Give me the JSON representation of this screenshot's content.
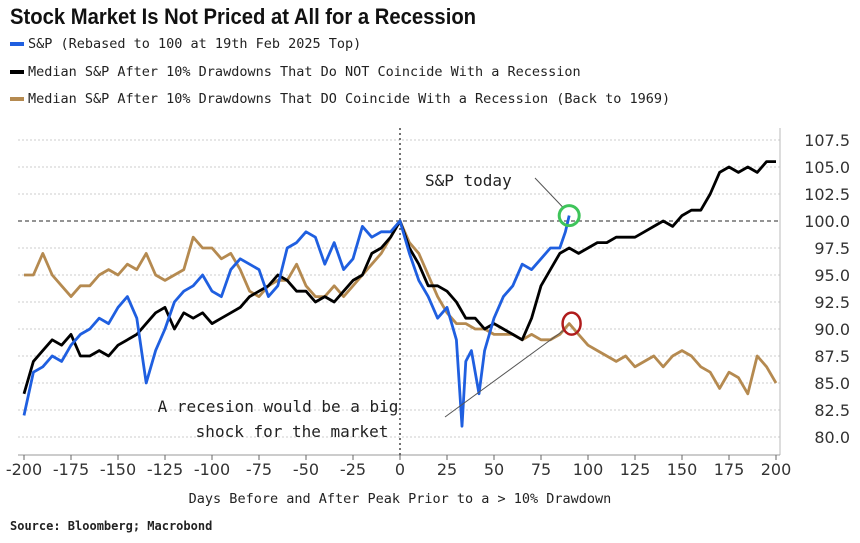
{
  "chart_data": {
    "type": "line",
    "title": "Stock Market Is Not Priced at All for a Recession",
    "xlabel": "Days Before and After Peak Prior to a > 10% Drawdown",
    "ylabel": "",
    "xlim": [
      -200,
      200
    ],
    "ylim": [
      79,
      108.5
    ],
    "y_axis_side": "right",
    "grid": true,
    "legend_placement": "top-left",
    "x_ticks": [
      -200,
      -175,
      -150,
      -125,
      -100,
      -75,
      -50,
      -25,
      0,
      25,
      50,
      75,
      100,
      125,
      150,
      175,
      200
    ],
    "y_ticks": [
      "80.0",
      "82.5",
      "85.0",
      "87.5",
      "90.0",
      "92.5",
      "95.0",
      "97.5",
      "100.0",
      "102.5",
      "105.0",
      "107.5"
    ],
    "reference_lines": {
      "horizontal_y": 100,
      "vertical_x": 0
    },
    "series": [
      {
        "name": "S&P (Rebased to 100 at 19th Feb 2025 Top)",
        "color": "#1f5fe0",
        "x": [
          -200,
          -195,
          -190,
          -185,
          -180,
          -175,
          -170,
          -165,
          -160,
          -155,
          -150,
          -145,
          -140,
          -135,
          -130,
          -125,
          -120,
          -115,
          -110,
          -105,
          -100,
          -95,
          -90,
          -85,
          -80,
          -75,
          -70,
          -65,
          -60,
          -55,
          -50,
          -45,
          -40,
          -35,
          -30,
          -25,
          -20,
          -15,
          -10,
          -5,
          0,
          5,
          10,
          15,
          20,
          25,
          30,
          33,
          35,
          38,
          42,
          45,
          50,
          55,
          60,
          65,
          70,
          75,
          80,
          85,
          88,
          90
        ],
        "y": [
          82,
          86,
          86.5,
          87.5,
          87,
          88.5,
          89.5,
          90,
          91,
          90.5,
          92,
          93,
          91,
          85,
          88,
          90,
          92.5,
          93.5,
          94,
          95,
          93.5,
          93,
          95.5,
          96.5,
          96,
          95.5,
          93,
          94,
          97.5,
          98,
          99,
          98.5,
          96,
          98,
          95.5,
          96.5,
          99.5,
          98.5,
          99,
          99,
          100,
          97,
          94.5,
          93,
          91,
          92,
          89,
          81,
          87,
          88,
          84,
          88,
          91,
          93,
          94,
          96,
          95.5,
          96.5,
          97.5,
          97.5,
          99,
          100.5
        ]
      },
      {
        "name": "Median S&P After 10% Drawdowns That Do NOT Coincide With a Recession",
        "color": "#000000",
        "x": [
          -200,
          -195,
          -190,
          -185,
          -180,
          -175,
          -170,
          -165,
          -160,
          -155,
          -150,
          -145,
          -140,
          -135,
          -130,
          -125,
          -120,
          -115,
          -110,
          -105,
          -100,
          -95,
          -90,
          -85,
          -80,
          -75,
          -70,
          -65,
          -60,
          -55,
          -50,
          -45,
          -40,
          -35,
          -30,
          -25,
          -20,
          -15,
          -10,
          -5,
          0,
          5,
          10,
          15,
          20,
          25,
          30,
          35,
          40,
          45,
          50,
          55,
          60,
          65,
          70,
          75,
          80,
          85,
          90,
          95,
          100,
          105,
          110,
          115,
          120,
          125,
          130,
          135,
          140,
          145,
          150,
          155,
          160,
          165,
          170,
          175,
          180,
          185,
          190,
          195,
          200
        ],
        "y": [
          84,
          87,
          88,
          89,
          88.5,
          89.5,
          87.5,
          87.5,
          88,
          87.5,
          88.5,
          89,
          89.5,
          90.5,
          91.5,
          92,
          90,
          91.5,
          91,
          91.5,
          90.5,
          91,
          91.5,
          92,
          93,
          93.5,
          94,
          95,
          94.5,
          93.5,
          93.5,
          92.5,
          93,
          92.5,
          93.5,
          94.5,
          95,
          97,
          97.5,
          98.5,
          100,
          97.5,
          96,
          94,
          94,
          93.5,
          92.5,
          91,
          91,
          90,
          90.5,
          90,
          89.5,
          89,
          91,
          94,
          95.5,
          97,
          97.5,
          97,
          97.5,
          98,
          98,
          98.5,
          98.5,
          98.5,
          99,
          99.5,
          100,
          99.5,
          100.5,
          101,
          101,
          102.5,
          104.5,
          105,
          104.5,
          105,
          104.5,
          105.5,
          105.5
        ]
      },
      {
        "name": "Median S&P After 10% Drawdowns That DO Coincide With a Recession (Back to 1969)",
        "color": "#b58a50",
        "x": [
          -200,
          -195,
          -190,
          -185,
          -180,
          -175,
          -170,
          -165,
          -160,
          -155,
          -150,
          -145,
          -140,
          -135,
          -130,
          -125,
          -120,
          -115,
          -110,
          -105,
          -100,
          -95,
          -90,
          -85,
          -80,
          -75,
          -70,
          -65,
          -60,
          -55,
          -50,
          -45,
          -40,
          -35,
          -30,
          -25,
          -20,
          -15,
          -10,
          -5,
          0,
          5,
          10,
          15,
          20,
          25,
          30,
          35,
          40,
          45,
          50,
          55,
          60,
          65,
          70,
          75,
          80,
          85,
          90,
          95,
          100,
          105,
          110,
          115,
          120,
          125,
          130,
          135,
          140,
          145,
          150,
          155,
          160,
          165,
          170,
          175,
          180,
          185,
          190,
          195,
          200
        ],
        "y": [
          95,
          95,
          97,
          95,
          94,
          93,
          94,
          94,
          95,
          95.5,
          95,
          96,
          95.5,
          97,
          95,
          94.5,
          95,
          95.5,
          98.5,
          97.5,
          97.5,
          96.5,
          97,
          95.5,
          93.5,
          93,
          94,
          94.5,
          94.5,
          96,
          94,
          93,
          93,
          94,
          93,
          94,
          95,
          96,
          97,
          98.5,
          100,
          98,
          97,
          95,
          93,
          91.5,
          90.5,
          90.5,
          90,
          90,
          89.5,
          89.5,
          89.5,
          89,
          89.5,
          89,
          89,
          89.5,
          90.5,
          89.5,
          88.5,
          88,
          87.5,
          87,
          87.5,
          86.5,
          87,
          87.5,
          86.5,
          87.5,
          88,
          87.5,
          86.5,
          86,
          84.5,
          86,
          85.5,
          84,
          87.5,
          86.5,
          85
        ]
      }
    ],
    "annotations": [
      {
        "text": "S&P today",
        "target": {
          "x": 90,
          "y": 100.5
        },
        "circle_color": "#3ec45a"
      },
      {
        "text_lines": [
          "A recesion would be a big",
          "shock for the market"
        ],
        "target": {
          "x": 95,
          "y": 90.5
        },
        "circle_color": "#b01c1c"
      }
    ]
  },
  "source": "Source: Bloomberg; Macrobond"
}
